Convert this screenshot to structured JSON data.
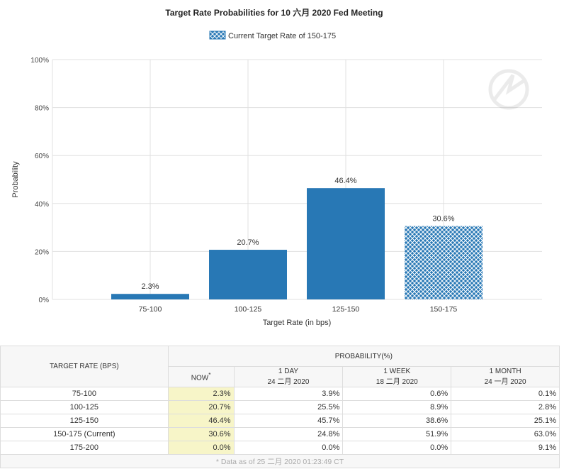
{
  "chart_data": {
    "type": "bar",
    "title": "Target Rate Probabilities for 10 六月 2020  Fed Meeting",
    "legend": {
      "label": "Current Target Rate of 150-175",
      "placement": "top-center"
    },
    "categories": [
      "75-100",
      "100-125",
      "125-150",
      "150-175"
    ],
    "values": [
      2.3,
      20.7,
      46.4,
      30.6
    ],
    "data_labels": [
      "2.3%",
      "20.7%",
      "46.4%",
      "30.6%"
    ],
    "highlighted_category": "150-175",
    "xlabel": "Target Rate (in bps)",
    "ylabel": "Probability",
    "ylim": [
      0,
      100
    ],
    "yticks": [
      "0%",
      "20%",
      "40%",
      "60%",
      "80%",
      "100%"
    ],
    "grid": true,
    "colors": {
      "bar": "#2878b5",
      "grid": "#e0e0e0"
    }
  },
  "table": {
    "col_target": "TARGET RATE (BPS)",
    "col_prob": "PROBABILITY(%)",
    "sub": [
      {
        "l1": "NOW",
        "l2": "*"
      },
      {
        "l1": "1 DAY",
        "l2": "24 二月 2020"
      },
      {
        "l1": "1 WEEK",
        "l2": "18 二月 2020"
      },
      {
        "l1": "1 MONTH",
        "l2": "24 一月 2020"
      }
    ],
    "rows": [
      [
        "75-100",
        "2.3%",
        "3.9%",
        "0.6%",
        "0.1%"
      ],
      [
        "100-125",
        "20.7%",
        "25.5%",
        "8.9%",
        "2.8%"
      ],
      [
        "125-150",
        "46.4%",
        "45.7%",
        "38.6%",
        "25.1%"
      ],
      [
        "150-175 (Current)",
        "30.6%",
        "24.8%",
        "51.9%",
        "63.0%"
      ],
      [
        "175-200",
        "0.0%",
        "0.0%",
        "0.0%",
        "9.1%"
      ]
    ],
    "footnote": "* Data as of 25 二月 2020 01:23:49 CT"
  }
}
